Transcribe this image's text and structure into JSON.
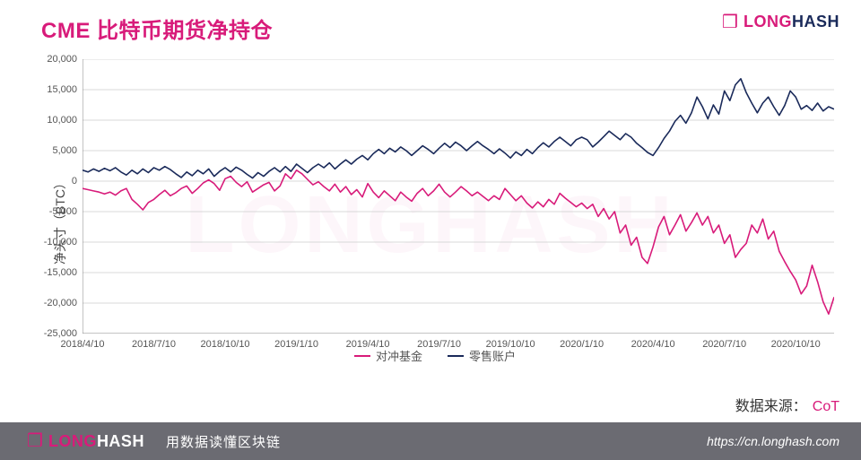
{
  "title": "CME 比特币期货净持仓",
  "brand": {
    "name_part1": "LONG",
    "name_part2": "HASH",
    "tagline": "用数据读懂区块链",
    "url": "https://cn.longhash.com",
    "icon_glyph": "❒",
    "pink": "#d81b7a",
    "navy": "#1a2a5a",
    "footer_bg": "#6b6b72"
  },
  "source": {
    "label": "数据来源：",
    "value": "CoT"
  },
  "chart": {
    "type": "line",
    "ylabel": "净头寸（BTC）",
    "background_color": "#ffffff",
    "grid_color": "#d8d8d8",
    "axis_color": "#888888",
    "label_fontsize": 11,
    "title_color": "#d81b7a",
    "line_width": 1.6,
    "ylim": [
      -25000,
      20000
    ],
    "ytick_step": 5000,
    "yticks": [
      -25000,
      -20000,
      -15000,
      -10000,
      -5000,
      0,
      5000,
      10000,
      15000,
      20000
    ],
    "ytick_labels": [
      "-25,000",
      "-20,000",
      "-15,000",
      "-10,000",
      "-5,000",
      "0",
      "5,000",
      "10,000",
      "15,000",
      "20,000"
    ],
    "x_start": "2018/4/10",
    "x_end": "2020/11/24",
    "xticks_idx": [
      0,
      13,
      26,
      39,
      52,
      65,
      78,
      91,
      104,
      117,
      130
    ],
    "xtick_labels": [
      "2018/4/10",
      "2018/7/10",
      "2018/10/10",
      "2019/1/10",
      "2019/4/10",
      "2019/7/10",
      "2019/10/10",
      "2020/1/10",
      "2020/4/10",
      "2020/7/10",
      "2020/10/10"
    ],
    "n_points": 138,
    "legend": [
      {
        "label": "对冲基金",
        "color": "#d81b7a"
      },
      {
        "label": "零售账户",
        "color": "#1a2a5a"
      }
    ],
    "series": {
      "hedge_funds": {
        "color": "#d81b7a",
        "values": [
          -1200,
          -1400,
          -1600,
          -1800,
          -2100,
          -1800,
          -2300,
          -1600,
          -1200,
          -3000,
          -3800,
          -4700,
          -3500,
          -3000,
          -2200,
          -1500,
          -2400,
          -1900,
          -1200,
          -800,
          -2000,
          -1200,
          -300,
          200,
          -400,
          -1500,
          400,
          800,
          -200,
          -900,
          -100,
          -1800,
          -1200,
          -600,
          -200,
          -1600,
          -800,
          1200,
          400,
          1800,
          1200,
          300,
          -600,
          -100,
          -900,
          -1600,
          -500,
          -1800,
          -900,
          -2200,
          -1400,
          -2600,
          -400,
          -1800,
          -2700,
          -1600,
          -2400,
          -3200,
          -1800,
          -2600,
          -3300,
          -2000,
          -1200,
          -2400,
          -1600,
          -500,
          -1800,
          -2600,
          -1800,
          -900,
          -1600,
          -2400,
          -1800,
          -2500,
          -3200,
          -2400,
          -3000,
          -1200,
          -2200,
          -3200,
          -2400,
          -3600,
          -4400,
          -3400,
          -4200,
          -3000,
          -3800,
          -2000,
          -2800,
          -3500,
          -4200,
          -3600,
          -4500,
          -3800,
          -5800,
          -4500,
          -6200,
          -5000,
          -8500,
          -7200,
          -10500,
          -9200,
          -12500,
          -13500,
          -10800,
          -7500,
          -5800,
          -8800,
          -7200,
          -5500,
          -8200,
          -6800,
          -5200,
          -7200,
          -5800,
          -8500,
          -7200,
          -10200,
          -8800,
          -12500,
          -11200,
          -10200,
          -7200,
          -8500,
          -6200,
          -9500,
          -8200,
          -11500,
          -13200,
          -14800,
          -16200,
          -18500,
          -17200,
          -13800,
          -16500,
          -19800,
          -21800,
          -19000
        ]
      },
      "retail": {
        "color": "#1a2a5a",
        "values": [
          1800,
          1500,
          2000,
          1600,
          2100,
          1700,
          2200,
          1500,
          1000,
          1800,
          1200,
          2000,
          1400,
          2200,
          1800,
          2400,
          1900,
          1200,
          600,
          1500,
          900,
          1800,
          1200,
          2000,
          800,
          1600,
          2200,
          1500,
          2300,
          1800,
          1100,
          500,
          1400,
          800,
          1600,
          2200,
          1500,
          2400,
          1600,
          2800,
          2100,
          1400,
          2200,
          2800,
          2200,
          3000,
          2000,
          2800,
          3500,
          2800,
          3600,
          4200,
          3500,
          4500,
          5200,
          4500,
          5400,
          4800,
          5600,
          5000,
          4200,
          5000,
          5800,
          5200,
          4500,
          5400,
          6200,
          5500,
          6400,
          5800,
          5000,
          5800,
          6500,
          5800,
          5200,
          4500,
          5300,
          4600,
          3800,
          4800,
          4200,
          5200,
          4500,
          5500,
          6300,
          5600,
          6500,
          7200,
          6500,
          5800,
          6800,
          7200,
          6800,
          5600,
          6400,
          7300,
          8200,
          7500,
          6800,
          7800,
          7200,
          6200,
          5500,
          4700,
          4200,
          5500,
          7000,
          8200,
          9800,
          10800,
          9500,
          11200,
          13800,
          12200,
          10200,
          12500,
          11000,
          14800,
          13200,
          15800,
          16800,
          14500,
          12800,
          11200,
          12800,
          13800,
          12200,
          10800,
          12400,
          14800,
          13800,
          11800,
          12400,
          11600,
          12800,
          11500,
          12200,
          11800
        ]
      }
    }
  }
}
